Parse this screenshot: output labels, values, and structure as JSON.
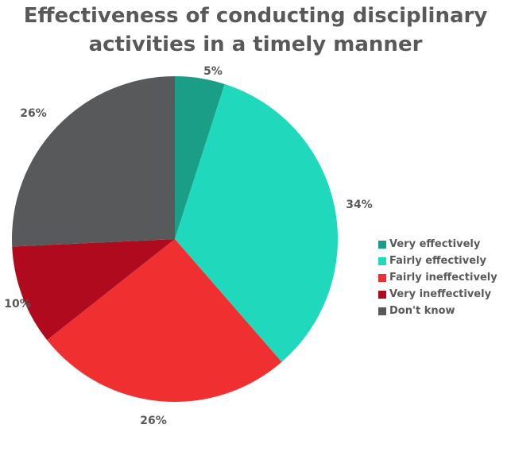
{
  "chart_data": {
    "type": "pie",
    "title_line1": "Effectiveness of conducting disciplinary",
    "title_line2": "activities in a timely manner",
    "slices": [
      {
        "label": "Very effectively",
        "value": 5,
        "data_label": "5%",
        "color": "#1a9e88"
      },
      {
        "label": "Fairly effectively",
        "value": 34,
        "data_label": "34%",
        "color": "#20d8bc"
      },
      {
        "label": "Fairly ineffectively",
        "value": 26,
        "data_label": "26%",
        "color": "#f03030"
      },
      {
        "label": "Very ineffectively",
        "value": 10,
        "data_label": "10%",
        "color": "#b00a1e"
      },
      {
        "label": "Don't know",
        "value": 26,
        "data_label": "26%",
        "color": "#58595b"
      }
    ],
    "start": "top",
    "direction": "clockwise",
    "legend_position": "right"
  }
}
